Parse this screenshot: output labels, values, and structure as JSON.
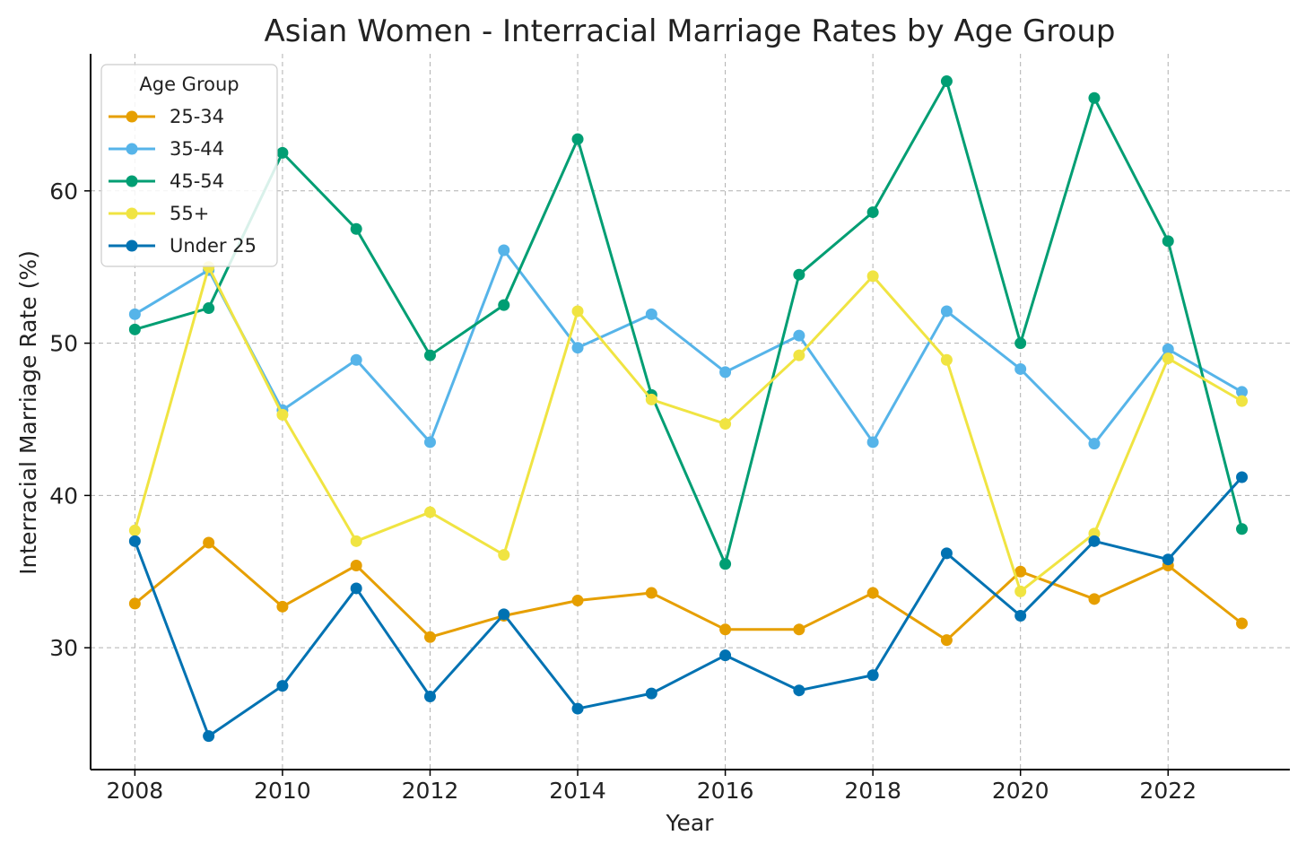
{
  "chart_data": {
    "type": "line",
    "title": "Asian Women - Interracial Marriage Rates by Age Group",
    "xlabel": "Year",
    "ylabel": "Interracial Marriage Rate (%)",
    "x": [
      2008,
      2009,
      2010,
      2011,
      2012,
      2013,
      2014,
      2015,
      2016,
      2017,
      2018,
      2019,
      2020,
      2021,
      2022,
      2023
    ],
    "xlim": [
      2007.4,
      2023.65
    ],
    "ylim": [
      22,
      69
    ],
    "x_ticks": [
      2008,
      2010,
      2012,
      2014,
      2016,
      2018,
      2020,
      2022
    ],
    "y_ticks": [
      30,
      40,
      50,
      60
    ],
    "grid": true,
    "legend": {
      "title": "Age Group",
      "position": "top-left"
    },
    "series": [
      {
        "name": "25-34",
        "color": "#E69F00",
        "values": [
          32.9,
          36.9,
          32.7,
          35.4,
          30.7,
          32.1,
          33.1,
          33.6,
          31.2,
          31.2,
          33.6,
          30.5,
          35.0,
          33.2,
          35.4,
          31.6
        ]
      },
      {
        "name": "35-44",
        "color": "#56B4E9",
        "values": [
          51.9,
          54.8,
          45.6,
          48.9,
          43.5,
          56.1,
          49.7,
          51.9,
          48.1,
          50.5,
          43.5,
          52.1,
          48.3,
          43.4,
          49.6,
          46.8
        ]
      },
      {
        "name": "45-54",
        "color": "#009E73",
        "values": [
          50.9,
          52.3,
          62.5,
          57.5,
          49.2,
          52.5,
          63.4,
          46.6,
          35.5,
          54.5,
          58.6,
          67.2,
          50.0,
          66.1,
          56.7,
          37.8
        ]
      },
      {
        "name": "55+",
        "color": "#F0E442",
        "values": [
          37.7,
          55.0,
          45.3,
          37.0,
          38.9,
          36.1,
          52.1,
          46.3,
          44.7,
          49.2,
          54.4,
          48.9,
          33.7,
          37.5,
          49.0,
          46.2
        ]
      },
      {
        "name": "Under 25",
        "color": "#0072B2",
        "values": [
          37.0,
          24.2,
          27.5,
          33.9,
          26.8,
          32.2,
          26.0,
          27.0,
          29.5,
          27.2,
          28.2,
          36.2,
          32.1,
          37.0,
          35.8,
          41.2
        ]
      }
    ]
  }
}
